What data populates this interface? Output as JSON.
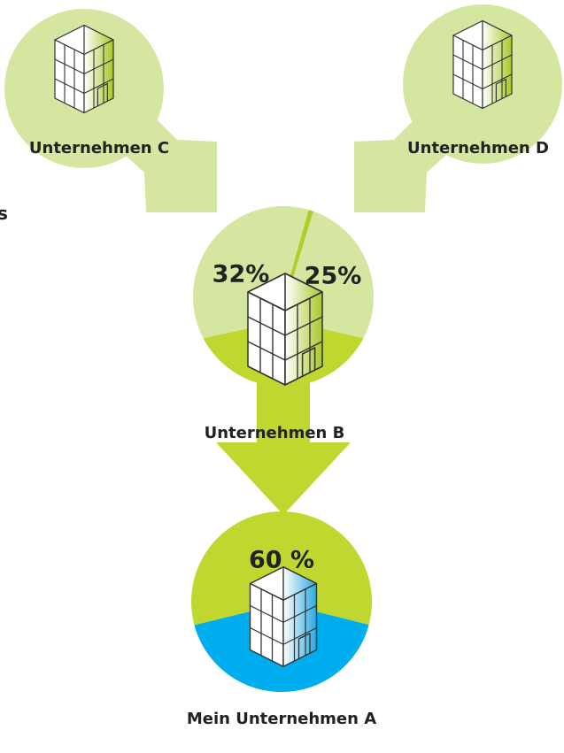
{
  "edge_text": "s",
  "nodes": [
    {
      "label": "Unternehmen C"
    },
    {
      "label": "Unternehmen D"
    },
    {
      "label": "Unternehmen B",
      "shares": [
        "32%",
        "25%"
      ]
    },
    {
      "label": "Mein Unternehmen A",
      "shares": [
        "60 %"
      ]
    }
  ]
}
